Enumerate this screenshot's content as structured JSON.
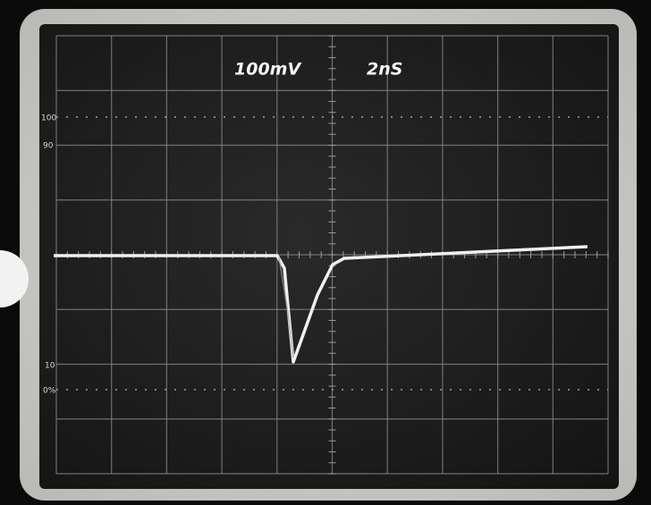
{
  "screen": {
    "volts_per_div": "100mV",
    "time_per_div": "2nS",
    "graticule_labels": [
      "100",
      "90",
      "10",
      "0%"
    ]
  }
}
